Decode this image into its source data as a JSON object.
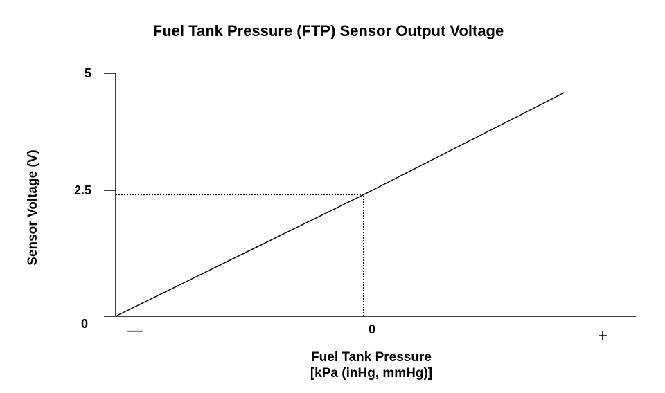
{
  "chart_data": {
    "type": "line",
    "title": "Fuel Tank Pressure (FTP) Sensor Output Voltage",
    "xlabel": "Fuel Tank Pressure",
    "xlabel_units": "[kPa (inHg, mmHg)]",
    "ylabel": "Sensor Voltage (V)",
    "y_ticks": [
      "0",
      "2.5",
      "5"
    ],
    "x_ticks": [
      "0"
    ],
    "x_negative_label": "—",
    "x_positive_label": "+",
    "xlim": [
      -1,
      1.1
    ],
    "ylim": [
      0,
      5
    ],
    "series": [
      {
        "x": [
          -1,
          0,
          0.81
        ],
        "y": [
          0,
          2.5,
          4.6
        ]
      }
    ],
    "reference_lines": [
      {
        "orientation": "horizontal",
        "y": 2.5,
        "x_from": -1,
        "x_to": 0,
        "style": "dotted"
      },
      {
        "orientation": "vertical",
        "x": 0,
        "y_from": 0,
        "y_to": 2.5,
        "style": "dotted"
      }
    ],
    "grid": false,
    "line_color": "#000000"
  }
}
